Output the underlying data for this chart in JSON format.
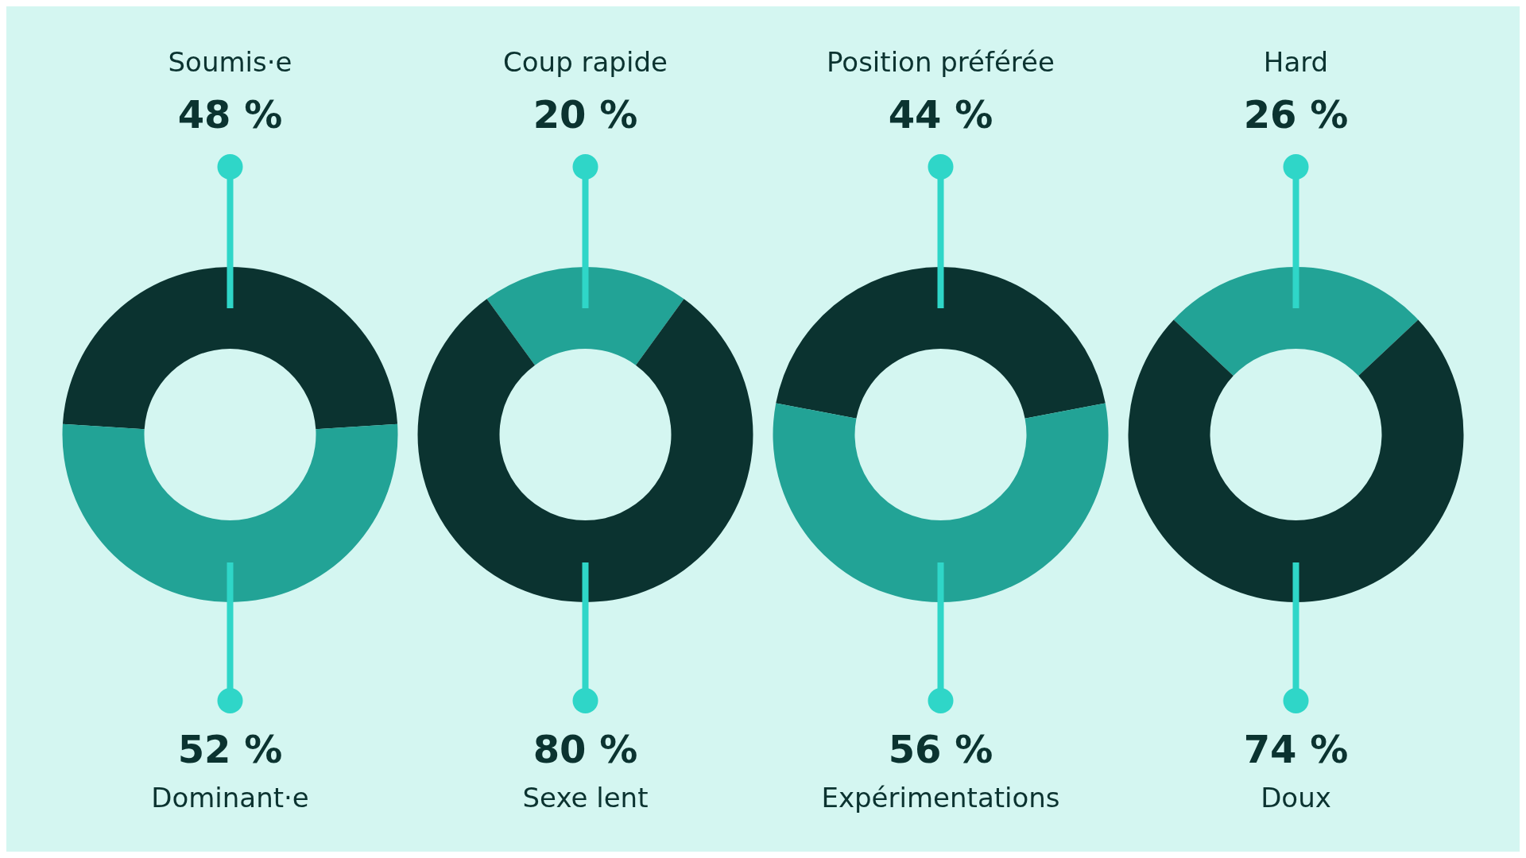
{
  "chart_data": [
    {
      "type": "donut",
      "categories": [
        "Soumis·e",
        "Dominant·e"
      ],
      "values": [
        48,
        52
      ],
      "colors": [
        "#0b3330",
        "#22a396"
      ],
      "value_labels": [
        "48 %",
        "52 %"
      ]
    },
    {
      "type": "donut",
      "categories": [
        "Coup rapide",
        "Sexe lent"
      ],
      "values": [
        20,
        80
      ],
      "colors": [
        "#22a396",
        "#0b3330"
      ],
      "value_labels": [
        "20 %",
        "80 %"
      ]
    },
    {
      "type": "donut",
      "categories": [
        "Position préférée",
        "Expérimentations"
      ],
      "values": [
        44,
        56
      ],
      "colors": [
        "#0b3330",
        "#22a396"
      ],
      "value_labels": [
        "44 %",
        "56 %"
      ]
    },
    {
      "type": "donut",
      "categories": [
        "Hard",
        "Doux"
      ],
      "values": [
        26,
        74
      ],
      "colors": [
        "#22a396",
        "#0b3330"
      ],
      "value_labels": [
        "26 %",
        "74 %"
      ]
    }
  ]
}
